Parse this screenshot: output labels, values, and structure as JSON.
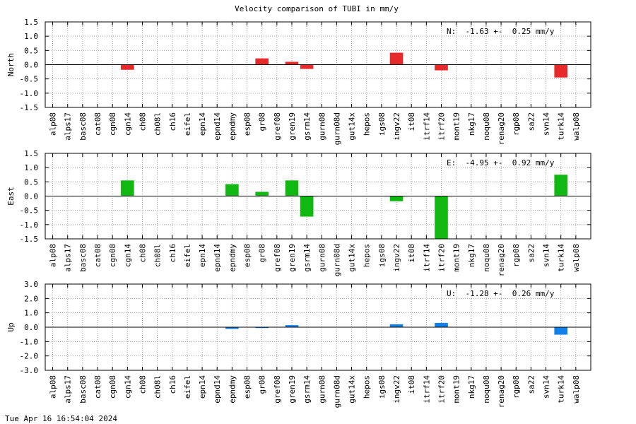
{
  "title": "Velocity comparison of TUBI in mm/y",
  "footer": {
    "timestamp": "Tue Apr 16 16:54:04 2024"
  },
  "colors": {
    "north": "#e8292b",
    "east": "#12b812",
    "up": "#1180e8",
    "grid": "#a0a0a0",
    "axis": "#000000"
  },
  "chart_data": [
    {
      "type": "bar",
      "panel": "north",
      "ylabel": "North",
      "ylim": [
        -1.5,
        1.5
      ],
      "yticks": [
        "1.5",
        "1.0",
        "0.5",
        "0.0",
        "-0.5",
        "-1.0",
        "-1.5"
      ],
      "ytick_values": [
        1.5,
        1.0,
        0.5,
        0.0,
        -0.5,
        -1.0,
        -1.5
      ],
      "grid": true,
      "annotation": "N:  -1.63 +-  0.25 mm/y",
      "categories": [
        "alp08",
        "alps17",
        "basc08",
        "cat08",
        "cgn08",
        "cgn14",
        "ch08",
        "ch08l",
        "ch16",
        "eifel",
        "epn14",
        "epnd14",
        "epndmy",
        "esp08",
        "gr08",
        "gref08",
        "gren19",
        "gsrm14",
        "gurn08",
        "gurn08d",
        "gut14x",
        "hepos",
        "igs08",
        "ingv22",
        "it08",
        "itrf14",
        "itrf20",
        "mont19",
        "nkg17",
        "noqu08",
        "renag20",
        "rgp08",
        "sa22",
        "svn14",
        "turk14",
        "walp08"
      ],
      "values": [
        0,
        0,
        0,
        0,
        0,
        -0.18,
        0,
        0,
        0,
        0,
        0,
        0,
        0,
        0,
        0.22,
        0,
        0.1,
        -0.15,
        0,
        0,
        0,
        0,
        0,
        0.42,
        0,
        0,
        -0.2,
        0,
        0,
        0,
        0,
        0,
        0,
        0,
        -0.45,
        0
      ]
    },
    {
      "type": "bar",
      "panel": "east",
      "ylabel": "East",
      "ylim": [
        -1.5,
        1.5
      ],
      "yticks": [
        "1.5",
        "1.0",
        "0.5",
        "0.0",
        "-0.5",
        "-1.0",
        "-1.5"
      ],
      "ytick_values": [
        1.5,
        1.0,
        0.5,
        0.0,
        -0.5,
        -1.0,
        -1.5
      ],
      "grid": true,
      "annotation": "E:  -4.95 +-  0.92 mm/y",
      "categories": [
        "alp08",
        "alps17",
        "basc08",
        "cat08",
        "cgn08",
        "cgn14",
        "ch08",
        "ch08l",
        "ch16",
        "eifel",
        "epn14",
        "epnd14",
        "epndmy",
        "esp08",
        "gr08",
        "gref08",
        "gren19",
        "gsrm14",
        "gurn08",
        "gurn08d",
        "gut14x",
        "hepos",
        "igs08",
        "ingv22",
        "it08",
        "itrf14",
        "itrf20",
        "mont19",
        "nkg17",
        "noqu08",
        "renag20",
        "rgp08",
        "sa22",
        "svn14",
        "turk14",
        "walp08"
      ],
      "values": [
        0,
        0,
        0,
        0,
        0,
        0.55,
        0,
        0,
        0,
        0,
        0,
        0,
        0.42,
        0,
        0.15,
        0,
        0.55,
        -0.72,
        0,
        0,
        0,
        0,
        0,
        -0.18,
        0,
        0,
        -1.6,
        0,
        0,
        0,
        0,
        0,
        0,
        0,
        0.75,
        0
      ]
    },
    {
      "type": "bar",
      "panel": "up",
      "ylabel": "Up",
      "ylim": [
        -3.0,
        3.0
      ],
      "yticks": [
        "3.0",
        "2.0",
        "1.0",
        "0.0",
        "-1.0",
        "-2.0",
        "-3.0"
      ],
      "ytick_values": [
        3.0,
        2.0,
        1.0,
        0.0,
        -1.0,
        -2.0,
        -3.0
      ],
      "grid": true,
      "annotation": "U:  -1.28 +-  0.26 mm/y",
      "categories": [
        "alp08",
        "alps17",
        "basc08",
        "cat08",
        "cgn08",
        "cgn14",
        "ch08",
        "ch08l",
        "ch16",
        "eifel",
        "epn14",
        "epnd14",
        "epndmy",
        "esp08",
        "gr08",
        "gref08",
        "gren19",
        "gsrm14",
        "gurn08",
        "gurn08d",
        "gut14x",
        "hepos",
        "igs08",
        "ingv22",
        "it08",
        "itrf14",
        "itrf20",
        "mont19",
        "nkg17",
        "noqu08",
        "renag20",
        "rgp08",
        "sa22",
        "svn14",
        "turk14",
        "walp08"
      ],
      "values": [
        0,
        0,
        0,
        0,
        0,
        0,
        0,
        0,
        0,
        0,
        0,
        0,
        -0.12,
        0,
        -0.06,
        0,
        0.14,
        0,
        0,
        0,
        0,
        0,
        0,
        0.2,
        0,
        0,
        0.3,
        0,
        0,
        0,
        0,
        0,
        0,
        0,
        -0.52,
        0
      ]
    }
  ]
}
